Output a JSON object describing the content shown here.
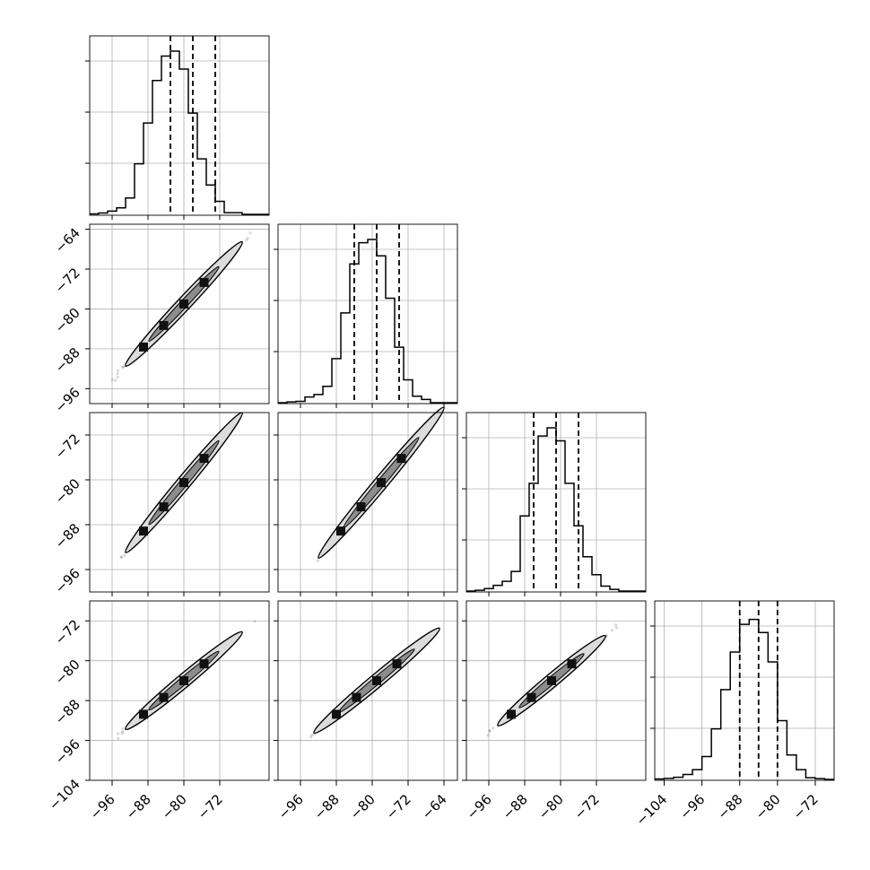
{
  "chart_data": {
    "type": "corner",
    "n_params": 4,
    "grid": true,
    "title": "",
    "histograms": [
      {
        "x_range": [
          -101,
          -61
        ],
        "bins": [
          -101,
          -99,
          -97,
          -95,
          -93,
          -91,
          -89,
          -87,
          -85,
          -83,
          -81,
          -79,
          -77,
          -75,
          -73,
          -71,
          -69,
          -67,
          -65,
          -63,
          -61
        ],
        "counts": [
          0.003,
          0.008,
          0.02,
          0.04,
          0.1,
          0.31,
          0.56,
          0.82,
          0.97,
          1.0,
          0.89,
          0.62,
          0.34,
          0.18,
          0.08,
          0.01,
          0.01,
          0,
          0,
          0
        ],
        "quantiles": [
          -83,
          -78,
          -73
        ]
      },
      {
        "x_range": [
          -101,
          -61
        ],
        "bins": [
          -101,
          -99,
          -97,
          -95,
          -93,
          -91,
          -89,
          -87,
          -85,
          -83,
          -81,
          -79,
          -77,
          -75,
          -73,
          -71,
          -69,
          -67,
          -65,
          -63,
          -61
        ],
        "counts": [
          0,
          0.005,
          0.008,
          0.035,
          0.05,
          0.1,
          0.27,
          0.55,
          0.85,
          0.98,
          1.0,
          0.9,
          0.64,
          0.34,
          0.14,
          0.04,
          0.02,
          0,
          0,
          0
        ],
        "quantiles": [
          -84,
          -79,
          -74
        ]
      },
      {
        "x_range": [
          -101,
          -61
        ],
        "bins": [
          -101,
          -99,
          -97,
          -95,
          -93,
          -91,
          -89,
          -87,
          -85,
          -83,
          -81,
          -79,
          -77,
          -75,
          -73,
          -71,
          -69,
          -67,
          -65,
          -63,
          -61
        ],
        "counts": [
          0,
          0.005,
          0.015,
          0.035,
          0.06,
          0.12,
          0.46,
          0.66,
          0.95,
          1.0,
          0.92,
          0.66,
          0.4,
          0.21,
          0.1,
          0.03,
          0.01,
          0,
          0,
          0
        ],
        "quantiles": [
          -86,
          -81,
          -76
        ]
      },
      {
        "x_range": [
          -106,
          -68
        ],
        "bins": [
          -106,
          -104,
          -102,
          -100,
          -98,
          -96,
          -94,
          -92,
          -90,
          -88,
          -86,
          -84,
          -82,
          -80,
          -78,
          -76,
          -74,
          -72,
          -70,
          -68
        ],
        "counts": [
          0.003,
          0.006,
          0.013,
          0.03,
          0.06,
          0.14,
          0.31,
          0.55,
          0.78,
          0.95,
          0.98,
          0.9,
          0.72,
          0.36,
          0.15,
          0.06,
          0.01,
          0.005,
          0
        ],
        "quantiles": [
          -88,
          -84,
          -80
        ]
      }
    ],
    "scatter_panels": [
      {
        "row": 1,
        "col": 0,
        "x_range": [
          -101,
          -61
        ],
        "y_range": [
          -99,
          -63
        ],
        "x_center": -80,
        "y_center": -79,
        "slope": 0.96,
        "contour_half_length": 13
      },
      {
        "row": 2,
        "col": 0,
        "x_range": [
          -101,
          -61
        ],
        "y_range": [
          -100,
          -68
        ],
        "x_center": -80,
        "y_center": -80.5,
        "slope": 0.96,
        "contour_half_length": 13
      },
      {
        "row": 2,
        "col": 1,
        "x_range": [
          -101,
          -61
        ],
        "y_range": [
          -100,
          -68
        ],
        "x_center": -78,
        "y_center": -80.5,
        "slope": 0.96,
        "contour_half_length": 14
      },
      {
        "row": 3,
        "col": 0,
        "x_range": [
          -101,
          -61
        ],
        "y_range": [
          -104,
          -68
        ],
        "x_center": -80,
        "y_center": -84,
        "slope": 0.75,
        "contour_half_length": 13
      },
      {
        "row": 3,
        "col": 1,
        "x_range": [
          -101,
          -61
        ],
        "y_range": [
          -104,
          -68
        ],
        "x_center": -79,
        "y_center": -84,
        "slope": 0.75,
        "contour_half_length": 14
      },
      {
        "row": 3,
        "col": 2,
        "x_range": [
          -101,
          -61
        ],
        "y_range": [
          -104,
          -68
        ],
        "x_center": -82,
        "y_center": -84,
        "slope": 0.75,
        "contour_half_length": 12
      }
    ],
    "x_axes": [
      {
        "col": 0,
        "ticks": [
          -96,
          -88,
          -80,
          -72
        ],
        "labels": [
          "−96",
          "−88",
          "−80",
          "−72"
        ]
      },
      {
        "col": 1,
        "ticks": [
          -96,
          -88,
          -80,
          -72,
          -64
        ],
        "labels": [
          "−96",
          "−88",
          "−80",
          "−72",
          "−64"
        ]
      },
      {
        "col": 2,
        "ticks": [
          -96,
          -88,
          -80,
          -72
        ],
        "labels": [
          "−96",
          "−88",
          "−80",
          "−72"
        ]
      },
      {
        "col": 3,
        "ticks": [
          -104,
          -96,
          -88,
          -80,
          -72
        ],
        "labels": [
          "−104",
          "−96",
          "−88",
          "−80",
          "−72"
        ]
      }
    ],
    "y_axes": [
      {
        "row": 1,
        "ticks": [
          -64,
          -72,
          -80,
          -88,
          -96
        ],
        "labels": [
          "−64",
          "−72",
          "−80",
          "−88",
          "−96"
        ]
      },
      {
        "row": 2,
        "ticks": [
          -72,
          -80,
          -88,
          -96
        ],
        "labels": [
          "−72",
          "−80",
          "−88",
          "−96"
        ]
      },
      {
        "row": 3,
        "ticks": [
          -72,
          -80,
          -88,
          -96,
          -104
        ],
        "labels": [
          "−72",
          "−80",
          "−88",
          "−96",
          "−104"
        ]
      }
    ],
    "colors": {
      "line": "#000000",
      "grid": "#b0b0b0",
      "scatter": "#666666"
    }
  }
}
